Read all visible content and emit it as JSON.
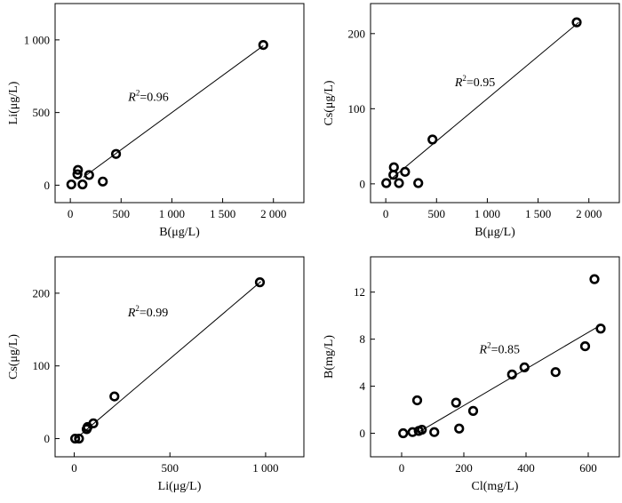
{
  "chart_data": [
    {
      "type": "scatter",
      "xlabel": "B(μg/L)",
      "ylabel": "Li(μg/L)",
      "xlim": [
        -150,
        2300
      ],
      "ylim": [
        -120,
        1250
      ],
      "xticks": [
        0,
        500,
        1000,
        1500,
        2000
      ],
      "xtick_labels": [
        "0",
        "500",
        "1 000",
        "1 500",
        "2 000"
      ],
      "yticks": [
        0,
        500,
        1000
      ],
      "ytick_labels": [
        "0",
        "500",
        "1 000"
      ],
      "annotation": {
        "prefix": "R",
        "sup": "2",
        "value": "=0.96",
        "x": 570,
        "y": 580
      },
      "fit": {
        "x1": 130,
        "y1": 55,
        "x2": 1900,
        "y2": 960
      },
      "points": [
        {
          "x": 10,
          "y": 5
        },
        {
          "x": 70,
          "y": 75
        },
        {
          "x": 75,
          "y": 105
        },
        {
          "x": 120,
          "y": 5
        },
        {
          "x": 185,
          "y": 70
        },
        {
          "x": 320,
          "y": 25
        },
        {
          "x": 450,
          "y": 215
        },
        {
          "x": 1900,
          "y": 965
        }
      ]
    },
    {
      "type": "scatter",
      "xlabel": "B(μg/L)",
      "ylabel": "Cs(μg/L)",
      "xlim": [
        -150,
        2300
      ],
      "ylim": [
        -25,
        240
      ],
      "xticks": [
        0,
        500,
        1000,
        1500,
        2000
      ],
      "xtick_labels": [
        "0",
        "500",
        "1 000",
        "1 500",
        "2 000"
      ],
      "yticks": [
        0,
        100,
        200
      ],
      "ytick_labels": [
        "0",
        "100",
        "200"
      ],
      "annotation": {
        "prefix": "R",
        "sup": "2",
        "value": "=0.95",
        "x": 680,
        "y": 130
      },
      "fit": {
        "x1": 40,
        "y1": 5,
        "x2": 1900,
        "y2": 215
      },
      "points": [
        {
          "x": 5,
          "y": 1
        },
        {
          "x": 75,
          "y": 12
        },
        {
          "x": 80,
          "y": 22
        },
        {
          "x": 130,
          "y": 1
        },
        {
          "x": 190,
          "y": 16
        },
        {
          "x": 320,
          "y": 1
        },
        {
          "x": 460,
          "y": 59
        },
        {
          "x": 1880,
          "y": 215
        }
      ]
    },
    {
      "type": "scatter",
      "xlabel": "Li(μg/L)",
      "ylabel": "Cs(μg/L)",
      "xlim": [
        -100,
        1200
      ],
      "ylim": [
        -25,
        250
      ],
      "xticks": [
        0,
        500,
        1000
      ],
      "xtick_labels": [
        "0",
        "500",
        "1 000"
      ],
      "yticks": [
        0,
        100,
        200
      ],
      "ytick_labels": [
        "0",
        "100",
        "200"
      ],
      "annotation": {
        "prefix": "R",
        "sup": "2",
        "value": "=0.99",
        "x": 280,
        "y": 168
      },
      "fit": {
        "x1": 0,
        "y1": -2,
        "x2": 975,
        "y2": 216
      },
      "points": [
        {
          "x": 5,
          "y": 0
        },
        {
          "x": 25,
          "y": 0
        },
        {
          "x": 65,
          "y": 13
        },
        {
          "x": 70,
          "y": 16
        },
        {
          "x": 100,
          "y": 21
        },
        {
          "x": 210,
          "y": 58
        },
        {
          "x": 970,
          "y": 215
        }
      ]
    },
    {
      "type": "scatter",
      "xlabel": "Cl(mg/L)",
      "ylabel": "B(mg/L)",
      "xlim": [
        -100,
        700
      ],
      "ylim": [
        -2,
        15
      ],
      "xticks": [
        0,
        200,
        400,
        600
      ],
      "xtick_labels": [
        "0",
        "200",
        "400",
        "600"
      ],
      "yticks": [
        0,
        4,
        8,
        12
      ],
      "ytick_labels": [
        "0",
        "4",
        "8",
        "12"
      ],
      "annotation": {
        "prefix": "R",
        "sup": "2",
        "value": "=0.85",
        "x": 250,
        "y": 6.8
      },
      "fit": {
        "x1": 55,
        "y1": 0.1,
        "x2": 640,
        "y2": 9.2
      },
      "points": [
        {
          "x": 5,
          "y": 0
        },
        {
          "x": 35,
          "y": 0.1
        },
        {
          "x": 50,
          "y": 2.8
        },
        {
          "x": 55,
          "y": 0.2
        },
        {
          "x": 65,
          "y": 0.3
        },
        {
          "x": 105,
          "y": 0.1
        },
        {
          "x": 175,
          "y": 2.6
        },
        {
          "x": 185,
          "y": 0.4
        },
        {
          "x": 230,
          "y": 1.9
        },
        {
          "x": 355,
          "y": 5.0
        },
        {
          "x": 395,
          "y": 5.6
        },
        {
          "x": 495,
          "y": 5.2
        },
        {
          "x": 590,
          "y": 7.4
        },
        {
          "x": 620,
          "y": 13.1
        },
        {
          "x": 640,
          "y": 8.9
        }
      ]
    }
  ]
}
